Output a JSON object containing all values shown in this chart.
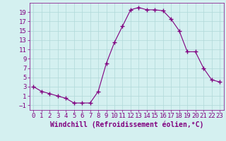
{
  "x": [
    0,
    1,
    2,
    3,
    4,
    5,
    6,
    7,
    8,
    9,
    10,
    11,
    12,
    13,
    14,
    15,
    16,
    17,
    18,
    19,
    20,
    21,
    22,
    23
  ],
  "y": [
    3,
    2,
    1.5,
    1,
    0.5,
    -0.5,
    -0.5,
    -0.5,
    2,
    8,
    12.5,
    16,
    19.5,
    20,
    19.5,
    19.5,
    19.3,
    17.5,
    15,
    10.5,
    10.5,
    7,
    4.5,
    4.0
  ],
  "xlabel": "Windchill (Refroidissement éolien,°C)",
  "xlim_min": -0.5,
  "xlim_max": 23.5,
  "ylim_min": -2,
  "ylim_max": 21,
  "yticks": [
    -1,
    1,
    3,
    5,
    7,
    9,
    11,
    13,
    15,
    17,
    19
  ],
  "xticks": [
    0,
    1,
    2,
    3,
    4,
    5,
    6,
    7,
    8,
    9,
    10,
    11,
    12,
    13,
    14,
    15,
    16,
    17,
    18,
    19,
    20,
    21,
    22,
    23
  ],
  "line_color": "#800080",
  "marker": "+",
  "marker_size": 4,
  "background_color": "#d4f0f0",
  "grid_color": "#b0d8d8",
  "font_color": "#800080",
  "tick_fontsize": 6.5,
  "xlabel_fontsize": 7
}
